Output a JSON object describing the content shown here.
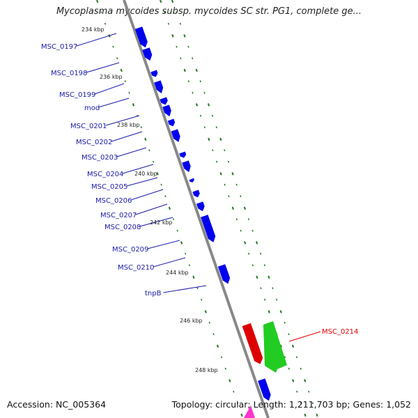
{
  "title": "Mycoplasma mycoides subsp. mycoides SC str. PG1, complete ge...",
  "accession": "Accession: NC_005364",
  "topology": "Topology: circular; Length: 1,211,703 bp; Genes: 1,052",
  "colors": {
    "gene_forward": "#0000ee",
    "gene_highlight": "#dd0000",
    "gene_reverse": "#22cc22",
    "label_main": "#1a1aaa",
    "label_highlight": "#dd0000",
    "backbone": "#888888",
    "dots": "#227722"
  },
  "ticks": [
    {
      "label": "234 kbp"
    },
    {
      "label": "236 kbp"
    },
    {
      "label": "238 kbp"
    },
    {
      "label": "240 kbp"
    },
    {
      "label": "242 kbp"
    },
    {
      "label": "244 kbp"
    },
    {
      "label": "246 kbp"
    },
    {
      "label": "248 kbp"
    }
  ],
  "genes": [
    {
      "label": "MSC_0197"
    },
    {
      "label": "MSC_0198"
    },
    {
      "label": "MSC_0199"
    },
    {
      "label": "mod"
    },
    {
      "label": "MSC_0201"
    },
    {
      "label": "MSC_0202"
    },
    {
      "label": "MSC_0203"
    },
    {
      "label": "MSC_0204"
    },
    {
      "label": "MSC_0205"
    },
    {
      "label": "MSC_0206"
    },
    {
      "label": "MSC_0207"
    },
    {
      "label": "MSC_0208"
    },
    {
      "label": "MSC_0209"
    },
    {
      "label": "MSC_0210"
    },
    {
      "label": "tnpB"
    }
  ],
  "highlight_gene": {
    "label": "MSC_0214"
  }
}
